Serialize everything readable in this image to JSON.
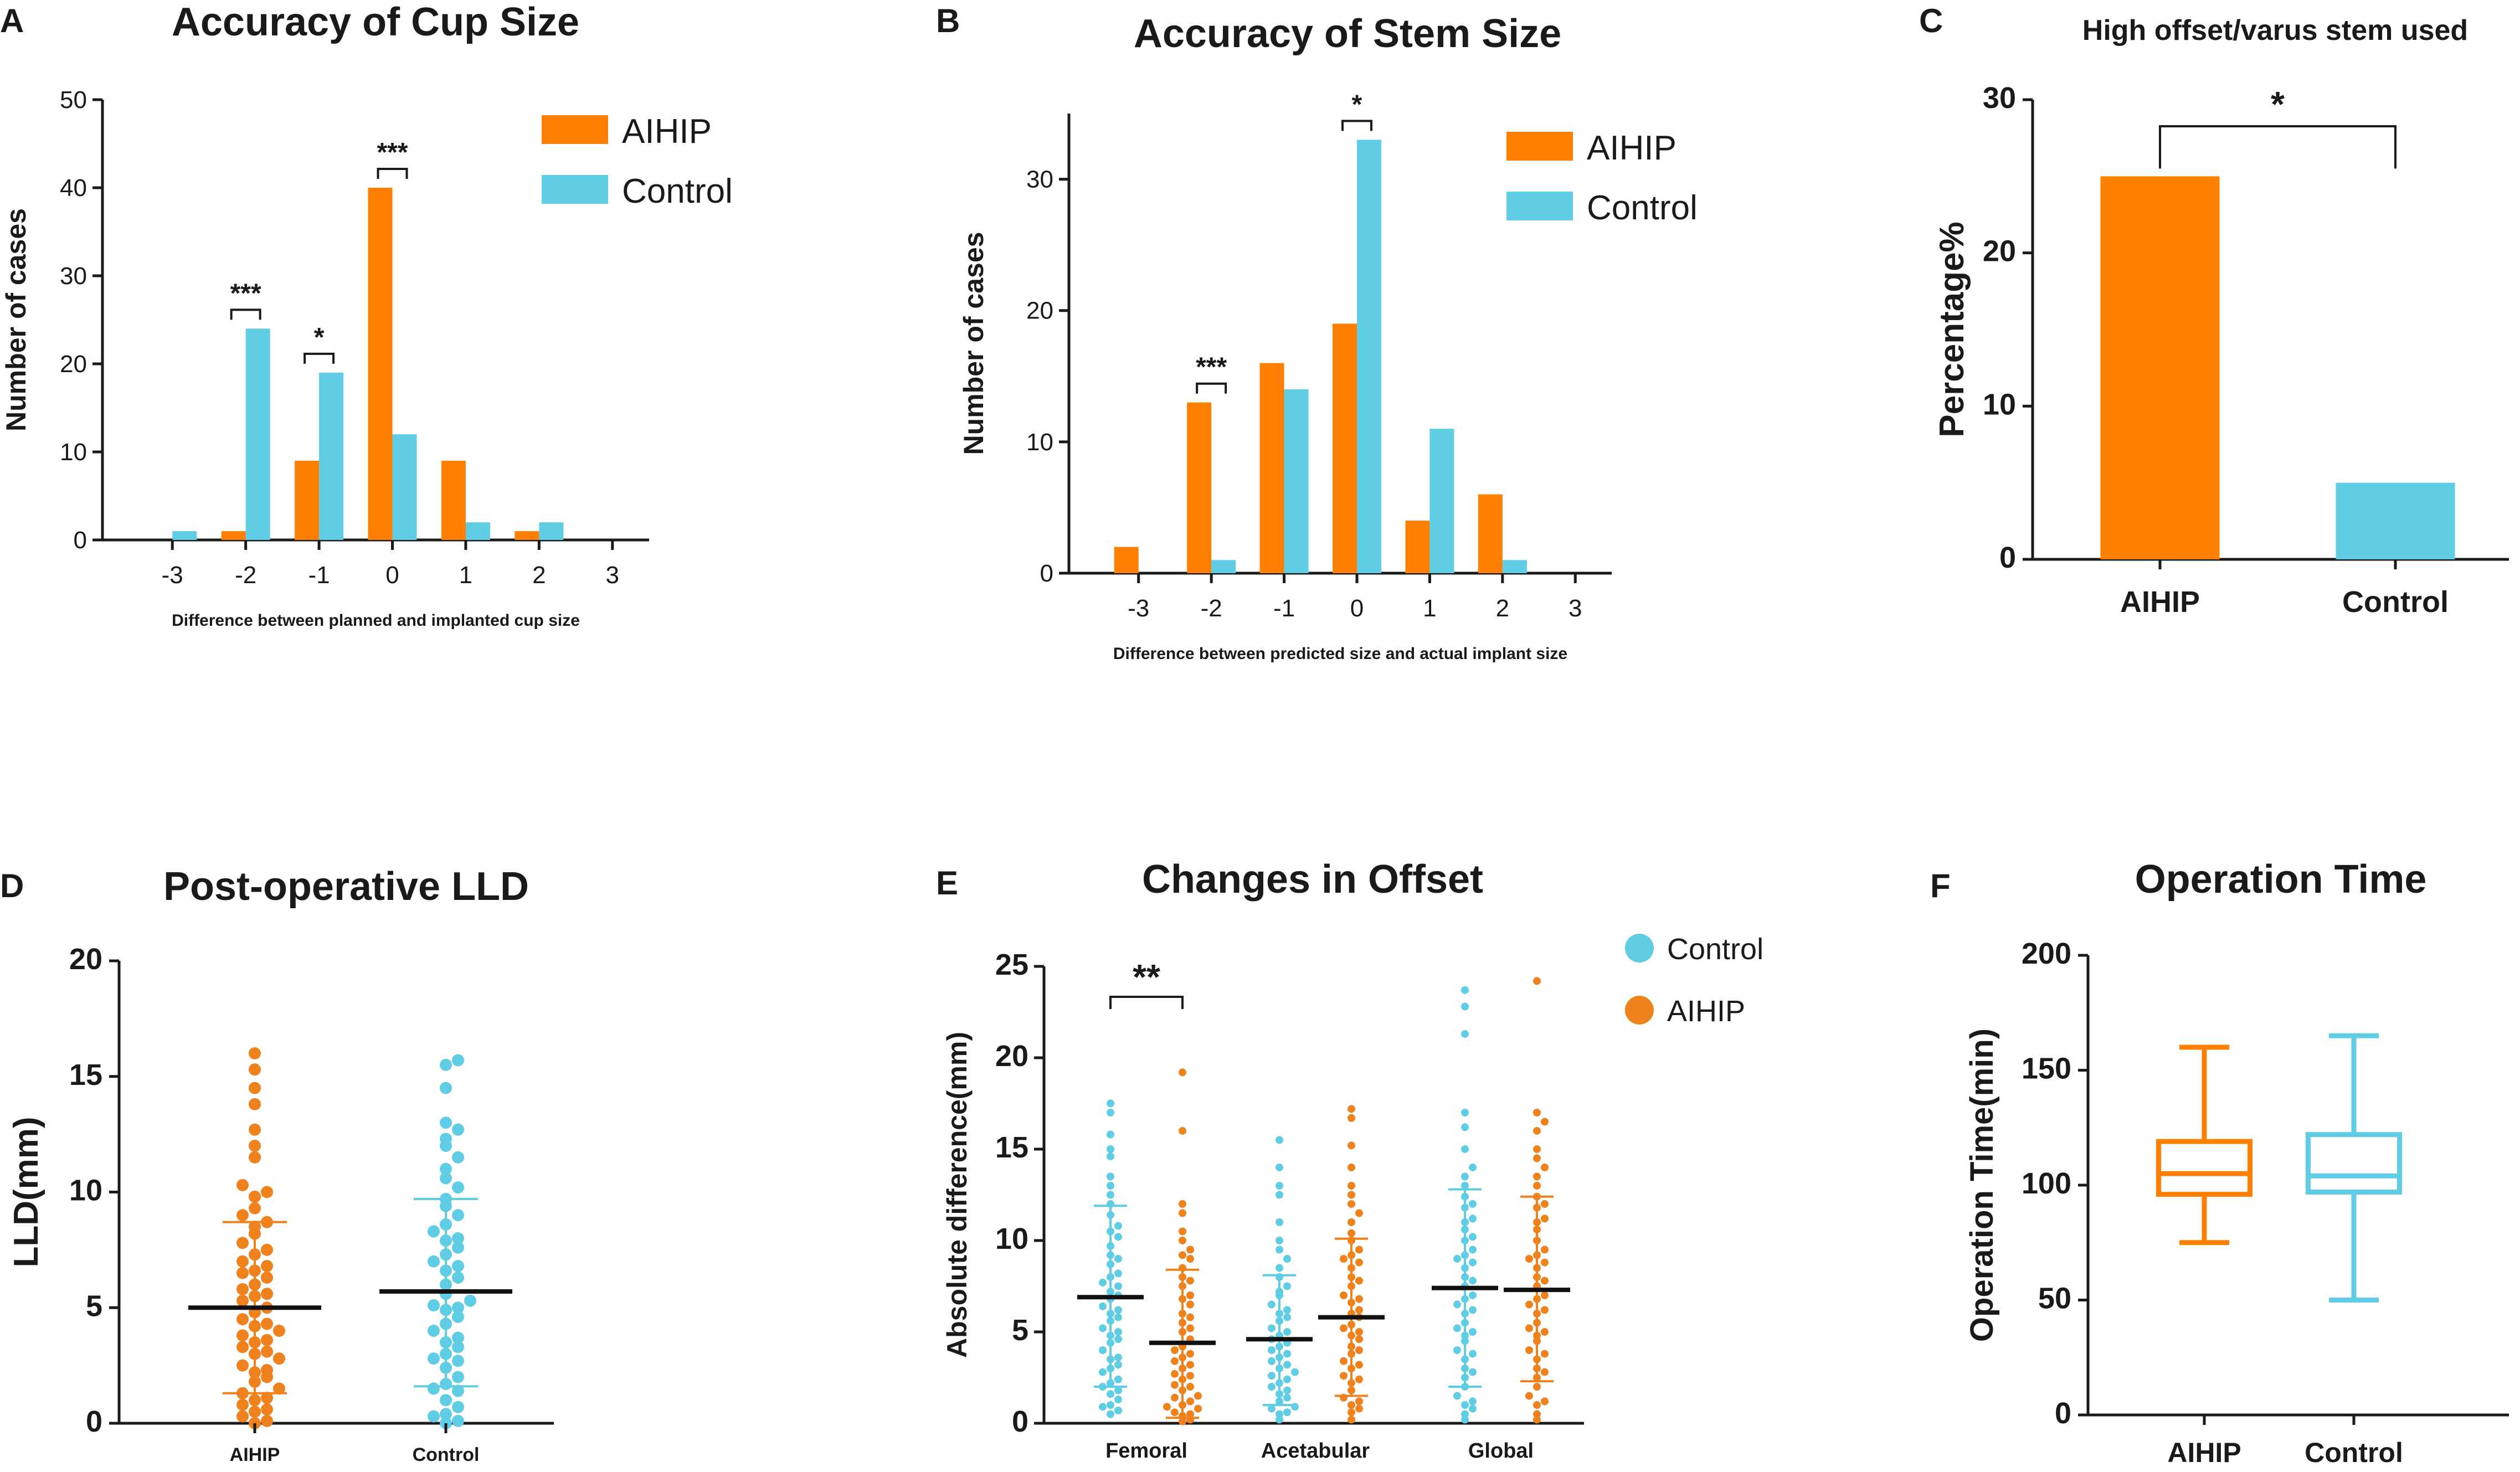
{
  "colors": {
    "aihip": "#FF8000",
    "control": "#5FCDE4",
    "axis": "#1a1a1a",
    "dot_aihip": "#F0821E",
    "dot_control": "#5FCDE4"
  },
  "chart_data": [
    {
      "id": "A",
      "panel": "A",
      "type": "bar",
      "title": "Accuracy of Cup Size",
      "xlabel": "Difference between planned and implanted cup size",
      "ylabel": "Number of cases",
      "categories": [
        "-3",
        "-2",
        "-1",
        "0",
        "1",
        "2",
        "3"
      ],
      "series": [
        {
          "name": "AIHIP",
          "values": [
            0,
            1,
            9,
            40,
            9,
            1,
            0
          ]
        },
        {
          "name": "Control",
          "values": [
            1,
            24,
            19,
            12,
            2,
            2,
            0
          ]
        }
      ],
      "ylim": [
        0,
        50
      ],
      "yticks": [
        0,
        10,
        20,
        30,
        40,
        50
      ],
      "significance": [
        {
          "category": "-2",
          "label": "***"
        },
        {
          "category": "-1",
          "label": "*"
        },
        {
          "category": "0",
          "label": "***"
        }
      ],
      "legend": "top-right"
    },
    {
      "id": "B",
      "panel": "B",
      "type": "bar",
      "title": "Accuracy of Stem Size",
      "xlabel": "Difference between predicted size and actual implant size",
      "ylabel": "Number of cases",
      "categories": [
        "-3",
        "-2",
        "-1",
        "0",
        "1",
        "2",
        "3"
      ],
      "series": [
        {
          "name": "AIHIP",
          "values": [
            2,
            13,
            16,
            19,
            4,
            6,
            0
          ]
        },
        {
          "name": "Control",
          "values": [
            0,
            1,
            14,
            33,
            11,
            1,
            0
          ]
        }
      ],
      "ylim": [
        0,
        35
      ],
      "yticks": [
        0,
        10,
        20,
        30
      ],
      "significance": [
        {
          "category": "-2",
          "label": "***"
        },
        {
          "category": "0",
          "label": "*"
        }
      ],
      "legend": "top-right"
    },
    {
      "id": "C",
      "panel": "C",
      "type": "bar",
      "title": "High offset/varus stem used",
      "ylabel": "Percentage%",
      "categories": [
        "AIHIP",
        "Control"
      ],
      "values": [
        25,
        5
      ],
      "ylim": [
        0,
        30
      ],
      "yticks": [
        0,
        10,
        20,
        30
      ],
      "significance": [
        {
          "between": [
            "AIHIP",
            "Control"
          ],
          "label": "*"
        }
      ]
    },
    {
      "id": "D",
      "panel": "D",
      "type": "scatter",
      "title": "Post-operative LLD",
      "ylabel": "LLD(mm)",
      "categories": [
        "AIHIP",
        "Control"
      ],
      "groups": [
        {
          "name": "AIHIP",
          "mean": 5.0,
          "sd_low": 1.3,
          "sd_high": 8.7,
          "points": [
            16.0,
            15.3,
            14.5,
            13.8,
            12.7,
            12.0,
            11.5,
            10.3,
            10.0,
            9.8,
            9.3,
            9.0,
            8.7,
            8.5,
            8.2,
            7.8,
            7.5,
            7.3,
            7.0,
            6.8,
            6.5,
            6.3,
            6.0,
            5.8,
            5.5,
            5.3,
            5.0,
            4.8,
            4.5,
            4.3,
            4.0,
            3.8,
            3.5,
            3.3,
            3.0,
            2.8,
            2.5,
            2.3,
            2.0,
            1.8,
            1.5,
            1.3,
            1.0,
            0.8,
            0.5,
            0.3,
            0.1,
            0.0,
            4.2,
            3.1,
            2.2,
            1.1,
            5.6,
            6.6,
            0.6,
            3.6
          ]
        },
        {
          "name": "Control",
          "mean": 5.7,
          "sd_low": 1.6,
          "sd_high": 9.7,
          "points": [
            15.7,
            15.5,
            14.5,
            13.0,
            12.7,
            12.3,
            12.0,
            11.5,
            11.0,
            10.6,
            10.2,
            9.7,
            9.4,
            9.0,
            8.6,
            8.3,
            8.0,
            7.6,
            7.3,
            7.0,
            6.6,
            6.3,
            6.0,
            5.6,
            5.3,
            5.0,
            4.6,
            4.3,
            4.0,
            3.7,
            3.3,
            3.0,
            2.7,
            2.4,
            2.0,
            1.7,
            1.4,
            1.0,
            0.7,
            0.4,
            0.1,
            0.0,
            2.8,
            3.5,
            4.9,
            6.8,
            1.5,
            0.3,
            5.1,
            7.9
          ]
        }
      ],
      "ylim": [
        0,
        20
      ],
      "yticks": [
        0,
        5,
        10,
        15,
        20
      ]
    },
    {
      "id": "E",
      "panel": "E",
      "type": "scatter",
      "title": "Changes in Offset",
      "ylabel": "Absolute difference(mm)",
      "categories": [
        "Femoral",
        "Acetabular",
        "Global"
      ],
      "legend_entries": [
        "Control",
        "AIHIP"
      ],
      "groups": [
        {
          "category": "Femoral",
          "name": "Control",
          "mean": 6.9,
          "sd_low": 2.0,
          "sd_high": 11.9,
          "points": [
            17.5,
            17.0,
            15.0,
            14.6,
            13.5,
            13.0,
            12.0,
            11.4,
            10.8,
            10.2,
            9.7,
            9.2,
            8.7,
            8.2,
            7.7,
            7.2,
            6.8,
            6.4,
            6.0,
            5.6,
            5.2,
            4.8,
            4.4,
            4.0,
            3.6,
            3.2,
            2.8,
            2.4,
            2.0,
            1.6,
            1.3,
            1.0,
            0.7,
            0.5,
            5.0,
            7.5,
            9.0,
            3.5,
            2.2,
            10.5,
            6.2,
            8.0,
            1.8,
            4.6,
            12.5,
            15.8,
            0.9,
            3.0,
            5.8,
            7.0
          ]
        },
        {
          "category": "Femoral",
          "name": "AIHIP",
          "mean": 4.4,
          "sd_low": 0.3,
          "sd_high": 8.4,
          "points": [
            19.2,
            16.0,
            12.0,
            11.5,
            10.5,
            10.0,
            9.5,
            9.0,
            8.5,
            8.0,
            7.5,
            7.0,
            6.5,
            6.0,
            5.5,
            5.0,
            4.6,
            4.2,
            3.8,
            3.4,
            3.0,
            2.7,
            2.4,
            2.1,
            1.8,
            1.5,
            1.2,
            0.9,
            0.6,
            0.4,
            0.2,
            0.1,
            3.2,
            4.0,
            5.2,
            6.8,
            2.0,
            1.0,
            0.5,
            7.8,
            2.6,
            3.6,
            0.8,
            1.4,
            5.8,
            9.2
          ]
        },
        {
          "category": "Acetabular",
          "name": "Control",
          "mean": 4.6,
          "sd_low": 1.0,
          "sd_high": 8.1,
          "points": [
            15.5,
            14.0,
            13.0,
            12.5,
            11.0,
            10.0,
            9.0,
            8.5,
            8.0,
            7.5,
            7.0,
            6.5,
            6.0,
            5.6,
            5.2,
            4.8,
            4.4,
            4.0,
            3.6,
            3.2,
            2.8,
            2.4,
            2.0,
            1.6,
            1.2,
            0.8,
            0.5,
            0.2,
            3.0,
            4.2,
            5.0,
            6.2,
            1.8,
            2.6,
            7.2,
            0.9,
            3.4,
            4.6,
            5.8,
            1.4,
            9.5,
            2.2,
            0.6,
            3.8
          ]
        },
        {
          "category": "Acetabular",
          "name": "AIHIP",
          "mean": 5.8,
          "sd_low": 1.5,
          "sd_high": 10.1,
          "points": [
            17.2,
            16.7,
            15.2,
            14.0,
            13.0,
            12.5,
            11.5,
            11.0,
            10.4,
            10.0,
            9.5,
            9.0,
            8.5,
            8.0,
            7.5,
            7.0,
            6.6,
            6.2,
            5.8,
            5.4,
            5.0,
            4.6,
            4.2,
            3.8,
            3.4,
            3.0,
            2.6,
            2.2,
            1.8,
            1.4,
            1.0,
            0.6,
            0.2,
            4.0,
            6.0,
            7.8,
            2.4,
            3.2,
            9.2,
            5.2,
            1.2,
            8.8,
            0.8,
            12.0,
            4.8,
            6.8
          ]
        },
        {
          "category": "Global",
          "name": "Control",
          "mean": 7.4,
          "sd_low": 2.0,
          "sd_high": 12.8,
          "points": [
            23.7,
            22.8,
            21.3,
            17.0,
            16.2,
            15.0,
            14.0,
            13.5,
            13.0,
            12.4,
            11.8,
            11.2,
            10.6,
            10.0,
            9.5,
            9.0,
            8.5,
            8.0,
            7.5,
            7.0,
            6.5,
            6.0,
            5.5,
            5.0,
            4.5,
            4.0,
            3.5,
            3.0,
            2.5,
            2.0,
            1.5,
            1.0,
            0.5,
            0.2,
            6.2,
            7.8,
            9.2,
            3.8,
            5.2,
            11.0,
            2.8,
            8.8,
            1.2,
            4.8,
            12.0,
            6.8,
            10.2,
            0.8
          ]
        },
        {
          "category": "Global",
          "name": "AIHIP",
          "mean": 7.3,
          "sd_low": 2.3,
          "sd_high": 12.4,
          "points": [
            24.2,
            17.0,
            16.5,
            16.0,
            15.0,
            14.5,
            14.0,
            13.5,
            13.0,
            12.4,
            11.8,
            11.2,
            10.6,
            10.0,
            9.5,
            9.0,
            8.5,
            8.0,
            7.5,
            7.0,
            6.5,
            6.0,
            5.5,
            5.0,
            4.5,
            4.0,
            3.5,
            3.0,
            2.5,
            2.0,
            1.5,
            1.0,
            0.5,
            0.2,
            6.2,
            7.8,
            9.2,
            3.8,
            5.2,
            11.0,
            2.8,
            8.8,
            1.2,
            4.8,
            12.0,
            6.8
          ]
        }
      ],
      "ylim": [
        0,
        25
      ],
      "yticks": [
        0,
        5,
        10,
        15,
        20,
        25
      ],
      "significance": [
        {
          "category": "Femoral",
          "label": "**"
        }
      ]
    },
    {
      "id": "F",
      "panel": "F",
      "type": "box",
      "title": "Operation Time",
      "ylabel": "Operation Time(min)",
      "categories": [
        "AIHIP",
        "Control"
      ],
      "boxes": [
        {
          "name": "AIHIP",
          "min": 75,
          "q1": 96,
          "median": 105,
          "q3": 119,
          "max": 160
        },
        {
          "name": "Control",
          "min": 50,
          "q1": 97,
          "median": 104,
          "q3": 122,
          "max": 165
        }
      ],
      "ylim": [
        0,
        200
      ],
      "yticks": [
        0,
        50,
        100,
        150,
        200
      ]
    }
  ]
}
